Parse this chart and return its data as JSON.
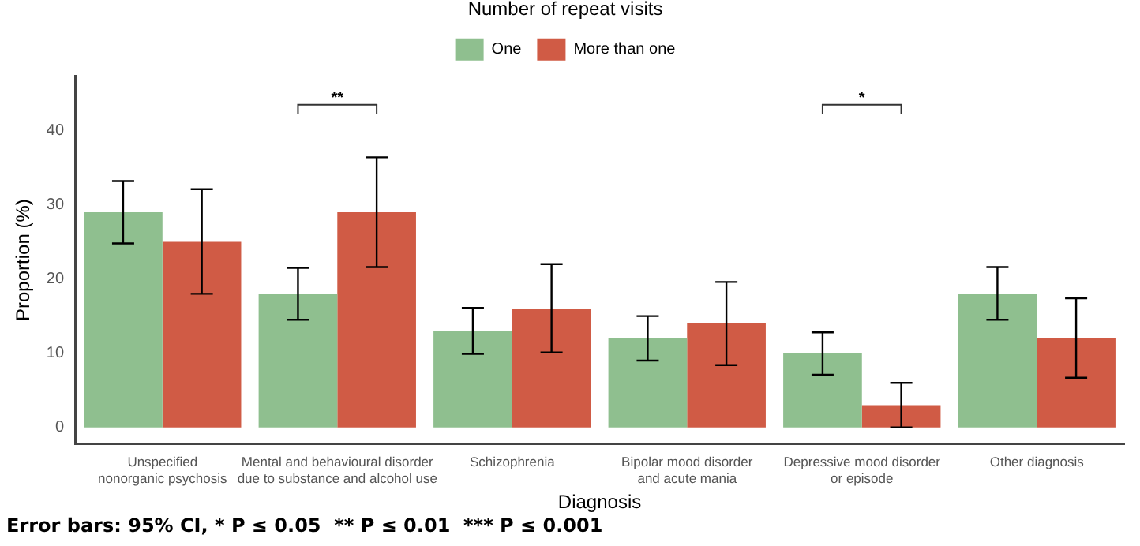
{
  "chart_data": {
    "type": "bar",
    "xlabel": "Diagnosis",
    "ylabel": "Proportion (%)",
    "legend_title": "Number of repeat visits",
    "legend": "top",
    "categories": [
      "Unspecified\nnonorganic psychosis",
      "Mental and behavioural disorder\ndue to substance and alcohol use",
      "Schizophrenia",
      "Bipolar mood disorder\nand acute mania",
      "Depressive mood disorder\nor episode",
      "Other diagnosis"
    ],
    "series": [
      {
        "name": "One",
        "color": "#8fbf8f",
        "values": [
          29,
          18,
          13,
          12,
          10,
          18
        ],
        "errors": [
          [
            24.8,
            33.2
          ],
          [
            14.5,
            21.5
          ],
          [
            9.9,
            16.1
          ],
          [
            9,
            15
          ],
          [
            7.1,
            12.8
          ],
          [
            14.5,
            21.6
          ]
        ]
      },
      {
        "name": "More than one",
        "color": "#d05b45",
        "values": [
          25,
          29,
          16,
          14,
          3,
          12
        ],
        "errors": [
          [
            18,
            32.1
          ],
          [
            21.6,
            36.4
          ],
          [
            10.1,
            22
          ],
          [
            8.4,
            19.6
          ],
          [
            0,
            6
          ],
          [
            6.7,
            17.4
          ]
        ]
      }
    ],
    "ylim": [
      -2.2,
      47.3
    ],
    "yticks": [
      0,
      10,
      20,
      30,
      40
    ],
    "grid": false,
    "annotations": [
      "**",
      "*",
      "Error bars: 95% CI, * P ≤ 0.05  ** P ≤ 0.01  *** P ≤ 0.001"
    ]
  }
}
